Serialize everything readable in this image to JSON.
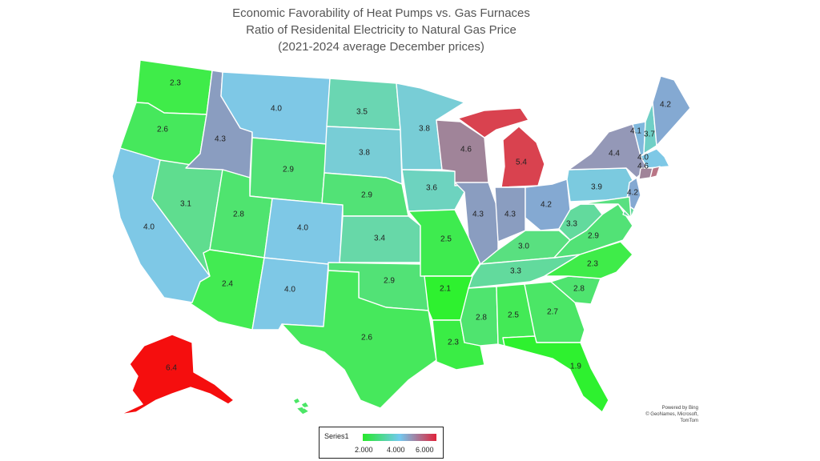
{
  "title_lines": [
    "Economic Favorability of Heat Pumps vs. Gas Furnaces",
    "Ratio of Residenital Electricity to Natural Gas Price",
    "(2021-2024 average December prices)"
  ],
  "states": {
    "WA": {
      "value": 2.3,
      "label": "2.3",
      "color": "#3fec49"
    },
    "OR": {
      "value": 2.6,
      "label": "2.6",
      "color": "#46e85c"
    },
    "CA": {
      "value": 4.0,
      "label": "4.0",
      "color": "#7ec8e6"
    },
    "NV": {
      "value": 3.1,
      "label": "3.1",
      "color": "#5fdd8f"
    },
    "ID": {
      "value": 4.3,
      "label": "4.3",
      "color": "#8a9dc0"
    },
    "MT": {
      "value": 4.0,
      "label": "4.0",
      "color": "#7ec8e6"
    },
    "WY": {
      "value": 2.9,
      "label": "2.9",
      "color": "#52e276"
    },
    "UT": {
      "value": 2.8,
      "label": "2.8",
      "color": "#4fe46f"
    },
    "AZ": {
      "value": 2.4,
      "label": "2.4",
      "color": "#42eb52"
    },
    "CO": {
      "value": 4.0,
      "label": "4.0",
      "color": "#7ec8e6"
    },
    "NM": {
      "value": 4.0,
      "label": "4.0",
      "color": "#7ec8e6"
    },
    "ND": {
      "value": 3.5,
      "label": "3.5",
      "color": "#6ad6b2"
    },
    "SD": {
      "value": 3.8,
      "label": "3.8",
      "color": "#78cdd6"
    },
    "NE": {
      "value": 2.9,
      "label": "2.9",
      "color": "#52e276"
    },
    "KS": {
      "value": 3.4,
      "label": "3.4",
      "color": "#67d8a8"
    },
    "OK": {
      "value": 2.9,
      "label": "2.9",
      "color": "#52e276"
    },
    "TX": {
      "value": 2.6,
      "label": "2.6",
      "color": "#46e85c"
    },
    "MN": {
      "value": 3.8,
      "label": "3.8",
      "color": "#78cdd6"
    },
    "IA": {
      "value": 3.6,
      "label": "3.6",
      "color": "#6dd3bf"
    },
    "MO": {
      "value": 2.5,
      "label": "2.5",
      "color": "#3eeb4f"
    },
    "AR": {
      "value": 2.1,
      "label": "2.1",
      "color": "#2ef12f"
    },
    "LA": {
      "value": 2.3,
      "label": "2.3",
      "color": "#3aed45"
    },
    "WI": {
      "value": 4.6,
      "label": "4.6",
      "color": "#a08499"
    },
    "IL": {
      "value": 4.3,
      "label": "4.3",
      "color": "#8a9dc0"
    },
    "MI": {
      "value": 5.4,
      "label": "5.4",
      "color": "#d9424f"
    },
    "IN": {
      "value": 4.3,
      "label": "4.3",
      "color": "#8a9dc0"
    },
    "OH": {
      "value": 4.2,
      "label": "4.2",
      "color": "#84a9d2"
    },
    "KY": {
      "value": 3.0,
      "label": "3.0",
      "color": "#59e080"
    },
    "TN": {
      "value": 3.3,
      "label": "3.3",
      "color": "#62da9d"
    },
    "MS": {
      "value": 2.8,
      "label": "2.8",
      "color": "#4fe46f"
    },
    "AL": {
      "value": 2.5,
      "label": "2.5",
      "color": "#43ea56"
    },
    "GA": {
      "value": 2.7,
      "label": "2.7",
      "color": "#4be666"
    },
    "FL": {
      "value": 1.9,
      "label": "1.9",
      "color": "#2ef12f"
    },
    "SC": {
      "value": 2.8,
      "label": "2.8",
      "color": "#4fe46f"
    },
    "NC": {
      "value": 2.3,
      "label": "2.3",
      "color": "#3fec49"
    },
    "VA": {
      "value": 2.9,
      "label": "2.9",
      "color": "#52e276"
    },
    "WV": {
      "value": 3.3,
      "label": "3.3",
      "color": "#62da9d"
    },
    "PA": {
      "value": 3.9,
      "label": "3.9",
      "color": "#7bcadf"
    },
    "NY": {
      "value": 4.4,
      "label": "4.4",
      "color": "#9498b7"
    },
    "VT": {
      "value": 4.1,
      "label": "4.1",
      "color": "#80b8dd"
    },
    "NH": {
      "value": 3.7,
      "label": "3.7",
      "color": "#70cfc6"
    },
    "ME": {
      "value": 4.2,
      "label": "4.2",
      "color": "#84a9d2"
    },
    "MA": {
      "value": 4.0,
      "label": "4.0",
      "color": "#7ec8e6"
    },
    "CT": {
      "value": 4.6,
      "label": "4.6",
      "color": "#a08499"
    },
    "RI": {
      "value": null,
      "label": "",
      "color": "#b97585"
    },
    "NJ": {
      "value": 4.2,
      "label": "4.2",
      "color": "#84a9d2"
    },
    "DE": {
      "value": null,
      "label": "",
      "color": "#62da9d"
    },
    "MD": {
      "value": null,
      "label": "",
      "color": "#59e080"
    },
    "AK": {
      "value": 6.4,
      "label": "6.4",
      "color": "#f50e0e"
    },
    "HI": {
      "value": null,
      "label": "",
      "color": "#4be666"
    }
  },
  "legend": {
    "title": "Series1",
    "ticks": [
      "2.000",
      "4.000",
      "6.000"
    ],
    "gradient": [
      "#27e82b",
      "#72c9f0",
      "#e0233a"
    ]
  },
  "credits": [
    "Powered by Bing",
    "© GeoNames, Microsoft, TomTom"
  ]
}
